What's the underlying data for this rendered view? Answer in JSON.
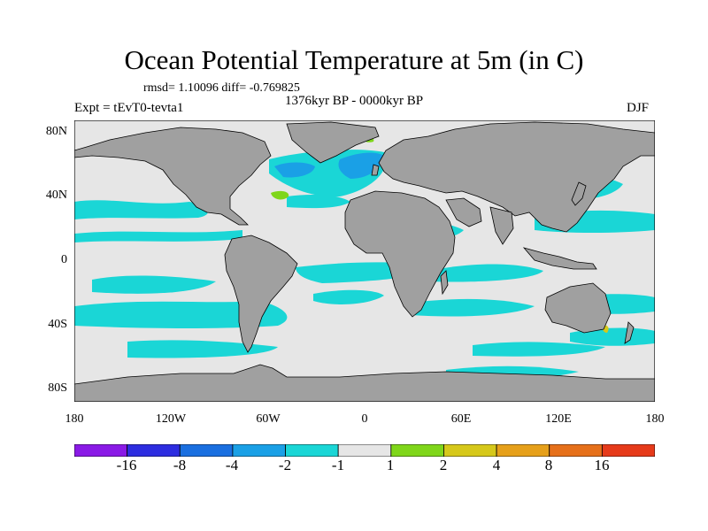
{
  "title": "Ocean Potential Temperature at 5m (in C)",
  "stats": "rmsd= 1.10096 diff= -0.769825",
  "experiment": "Expt = tEvT0-tevta1",
  "period": "1376kyr BP - 0000kyr BP",
  "season": "DJF",
  "map": {
    "lat_ticks": [
      "80N",
      "40N",
      "0",
      "40S",
      "80S"
    ],
    "lon_ticks": [
      "180",
      "120W",
      "60W",
      "0",
      "60E",
      "120E",
      "180"
    ],
    "colors": {
      "land": "#a0a0a0",
      "ocean_neutral": "#e6e6e6",
      "coast": "#000000"
    }
  },
  "colorbar": {
    "labels": [
      "-16",
      "-8",
      "-4",
      "-2",
      "-1",
      "1",
      "2",
      "4",
      "8",
      "16"
    ],
    "colors": [
      "#8a1ae6",
      "#2d2de0",
      "#1a6fe0",
      "#1aa0e6",
      "#1ad6d6",
      "#e6e6e6",
      "#7fd61a",
      "#d6c81a",
      "#e6a01a",
      "#e6701a",
      "#e63a1a"
    ]
  }
}
